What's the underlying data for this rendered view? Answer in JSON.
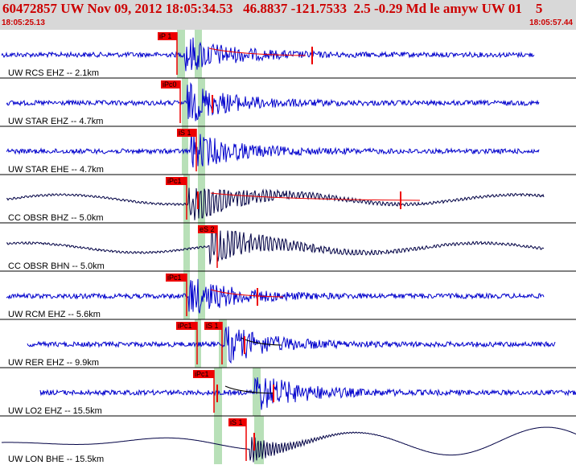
{
  "header": {
    "title": "60472857 UW Nov 09, 2012 18:05:34.53   46.8837 -121.7533  2.5 -0.29 Md le amyw UW 01    5",
    "time_start": "18:05:25.13",
    "time_end": "18:05:57.44"
  },
  "colors": {
    "header_bg": "#d8d8d8",
    "header_text": "#cc0000",
    "trace_blue": "#0000cc",
    "trace_navy": "#000044",
    "pick_red": "#ee0000",
    "window_green": "#b8e0b8"
  },
  "traces": [
    {
      "label": "UW RCS EHZ -- 2.1km",
      "picks": [
        "iP 1"
      ]
    },
    {
      "label": "UW STAR EHZ -- 4.7km",
      "picks": [
        "iPc0"
      ]
    },
    {
      "label": "UW STAR EHE -- 4.7km",
      "picks": [
        "iS 1"
      ]
    },
    {
      "label": "CC OBSR BHZ -- 5.0km",
      "picks": [
        "iPc1"
      ]
    },
    {
      "label": "CC OBSR BHN -- 5.0km",
      "picks": [
        "eS 2"
      ]
    },
    {
      "label": "UW RCM EHZ -- 5.6km",
      "picks": [
        "iPc1"
      ]
    },
    {
      "label": "UW RER EHZ -- 9.9km",
      "picks": [
        "iPc1",
        "iS 1"
      ]
    },
    {
      "label": "UW LO2 EHZ -- 15.5km",
      "picks": [
        "iPc1"
      ]
    },
    {
      "label": "UW LON BHE -- 15.5km",
      "picks": [
        "iS 1"
      ]
    }
  ]
}
